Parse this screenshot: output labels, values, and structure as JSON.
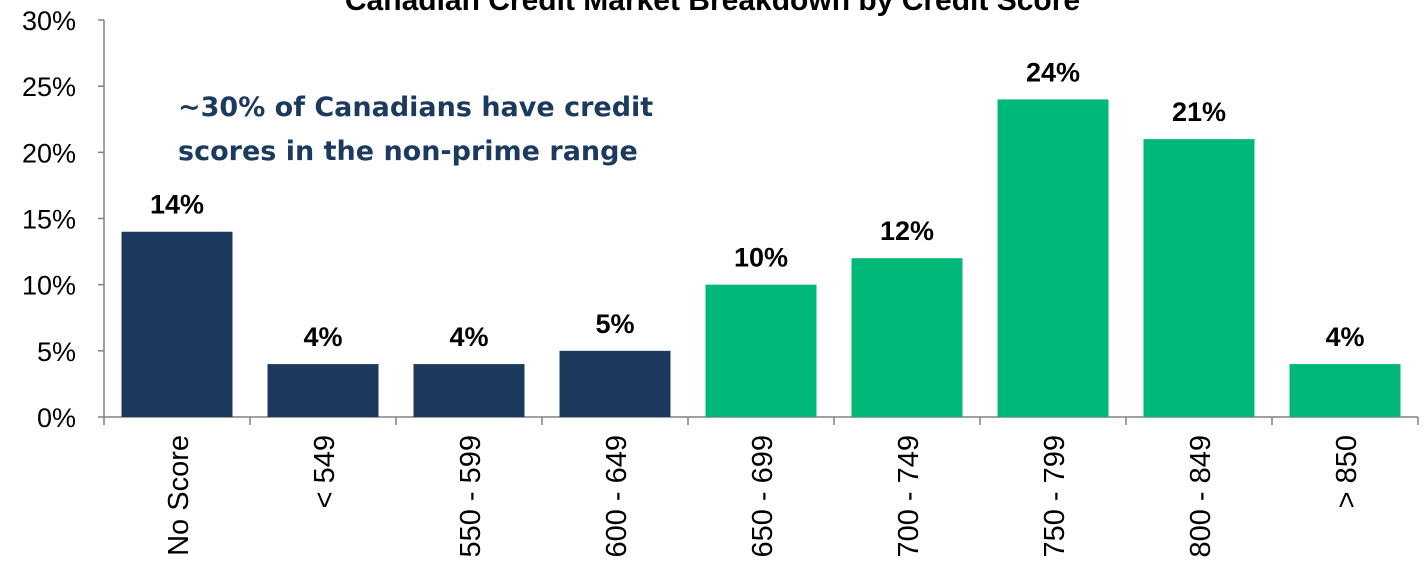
{
  "chart_data": {
    "type": "bar",
    "title": "Canadian Credit Market Breakdown by Credit Score",
    "annotation": "~30% of Canadians have credit scores in the non-prime range",
    "categories": [
      "No Score",
      "< 549",
      "550 - 599",
      "600 - 649",
      "650 - 699",
      "700 - 749",
      "750 - 799",
      "800 - 849",
      "> 850"
    ],
    "values": [
      14,
      4,
      4,
      5,
      10,
      12,
      24,
      21,
      4
    ],
    "data_labels": [
      "14%",
      "4%",
      "4%",
      "5%",
      "10%",
      "12%",
      "24%",
      "21%",
      "4%"
    ],
    "bar_colors": [
      "#1c3a5e",
      "#1c3a5e",
      "#1c3a5e",
      "#1c3a5e",
      "#00b877",
      "#00b877",
      "#00b877",
      "#00b877",
      "#00b877"
    ],
    "ylim": [
      0,
      30
    ],
    "yticks": [
      0,
      5,
      10,
      15,
      20,
      25,
      30
    ],
    "ytick_labels": [
      "0%",
      "5%",
      "10%",
      "15%",
      "20%",
      "25%",
      "30%"
    ],
    "xlabel": "",
    "ylabel": "",
    "grid": false,
    "legend": "none"
  }
}
